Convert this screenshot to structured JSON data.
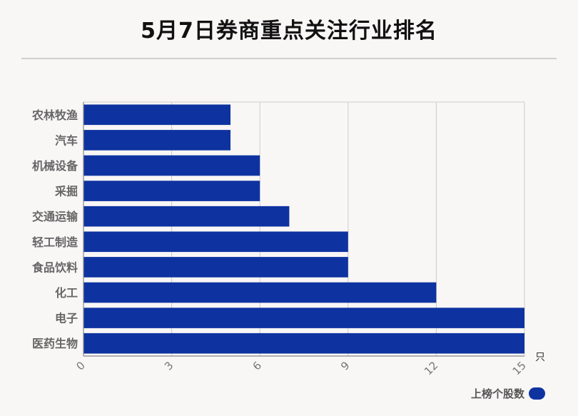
{
  "title": "5月7日券商重点关注行业排名",
  "colors": {
    "bar": "#0e33a0",
    "grid": "#cccccc",
    "axis": "#888888"
  },
  "chart_data": {
    "type": "bar",
    "orientation": "horizontal",
    "categories": [
      "农林牧渔",
      "汽车",
      "机械设备",
      "采掘",
      "交通运输",
      "轻工制造",
      "食品饮料",
      "化工",
      "电子",
      "医药生物"
    ],
    "series": [
      {
        "name": "上榜个股数",
        "values": [
          5,
          5,
          6,
          6,
          7,
          9,
          9,
          12,
          15,
          15
        ]
      }
    ],
    "xlim": [
      0,
      15
    ],
    "xticks": [
      0,
      3,
      6,
      9,
      12,
      15
    ],
    "xlabel": "只",
    "grid": true,
    "legend": "bottom-right"
  }
}
